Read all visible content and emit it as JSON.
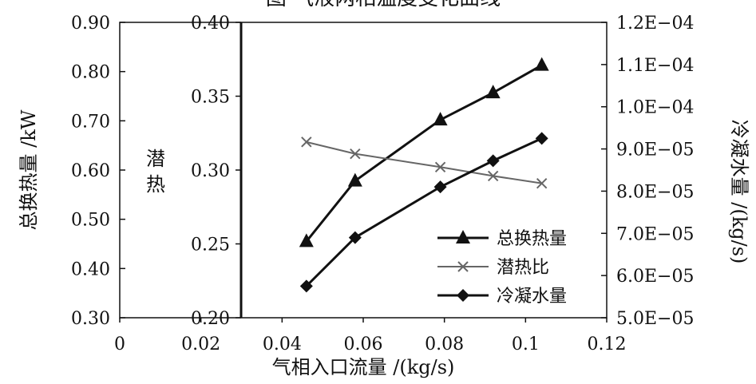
{
  "chart_data": {
    "type": "line",
    "title": "图 气液两相温度变化曲线",
    "xlabel": "气相入口流量 /(kg/s)",
    "xlim": [
      0,
      0.12
    ],
    "x_ticks": [
      "0",
      "0.02",
      "0.04",
      "0.06",
      "0.08",
      "0.1",
      "0.12"
    ],
    "y_axes": [
      {
        "id": "left",
        "label": "总换热量 /kW",
        "ylim": [
          0.3,
          0.9
        ],
        "ticks": [
          "0.30",
          "0.40",
          "0.50",
          "0.60",
          "0.70",
          "0.80",
          "0.90"
        ]
      },
      {
        "id": "mid",
        "label": "潜热",
        "ylim": [
          0.2,
          0.4
        ],
        "ticks": [
          "0.20",
          "0.25",
          "0.30",
          "0.35",
          "0.40"
        ]
      },
      {
        "id": "right",
        "label": "冷凝水量 /(kg/s)",
        "ylim": [
          5e-05,
          0.00012
        ],
        "ticks": [
          "5.0E−05",
          "6.0E−05",
          "7.0E−05",
          "8.0E−05",
          "9.0E−05",
          "1.0E−04",
          "1.1E−04",
          "1.2E−04"
        ]
      }
    ],
    "x": [
      0.046,
      0.058,
      0.079,
      0.092,
      0.104
    ],
    "series": [
      {
        "name": "总换热量",
        "axis": "left",
        "marker": "triangle",
        "color": "#111111",
        "values": [
          0.455,
          0.578,
          0.702,
          0.757,
          0.813
        ]
      },
      {
        "name": "潜热比",
        "axis": "mid",
        "marker": "x",
        "color": "#666666",
        "values": [
          0.319,
          0.311,
          0.302,
          0.296,
          0.291
        ]
      },
      {
        "name": "冷凝水量",
        "axis": "right",
        "marker": "diamond",
        "color": "#111111",
        "values": [
          5.75e-05,
          6.9e-05,
          8.1e-05,
          8.72e-05,
          9.25e-05
        ]
      }
    ],
    "legend": "bottom-right",
    "grid": false
  }
}
